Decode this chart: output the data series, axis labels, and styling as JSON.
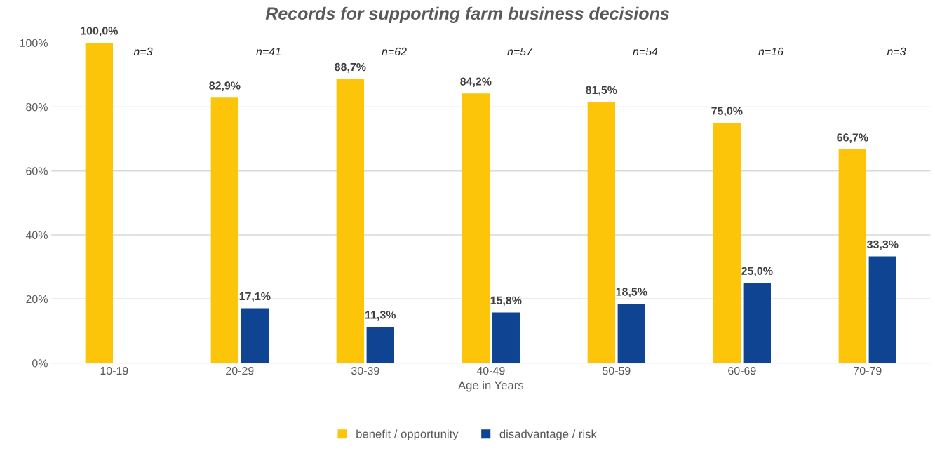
{
  "chart_data": {
    "type": "bar",
    "title": "Records for supporting farm business decisions",
    "xlabel": "Age in Years",
    "categories": [
      "10-19",
      "20-29",
      "30-39",
      "40-49",
      "50-59",
      "60-69",
      "70-79"
    ],
    "series": [
      {
        "name": "benefit / opportunity",
        "color": "#fcc50a",
        "values": [
          100.0,
          82.9,
          88.7,
          84.2,
          81.5,
          75.0,
          66.7
        ],
        "value_labels": [
          "100,0%",
          "82,9%",
          "88,7%",
          "84,2%",
          "81,5%",
          "75,0%",
          "66,7%"
        ]
      },
      {
        "name": "disadvantage / risk",
        "color": "#0e4492",
        "values": [
          null,
          17.1,
          11.3,
          15.8,
          18.5,
          25.0,
          33.3
        ],
        "value_labels": [
          null,
          "17,1%",
          "11,3%",
          "15,8%",
          "18,5%",
          "25,0%",
          "33,3%"
        ]
      }
    ],
    "ylim": [
      0,
      100
    ],
    "yticks": [
      {
        "value": 0,
        "label": "0%"
      },
      {
        "value": 20,
        "label": "20%"
      },
      {
        "value": 40,
        "label": "40%"
      },
      {
        "value": 60,
        "label": "60%"
      },
      {
        "value": 80,
        "label": "80%"
      },
      {
        "value": 100,
        "label": "100%"
      }
    ],
    "grid": "y",
    "legend": "bottom",
    "annotations": [
      "n=3",
      "n=41",
      "n=62",
      "n=57",
      "n=54",
      "n=16",
      "n=3"
    ]
  }
}
